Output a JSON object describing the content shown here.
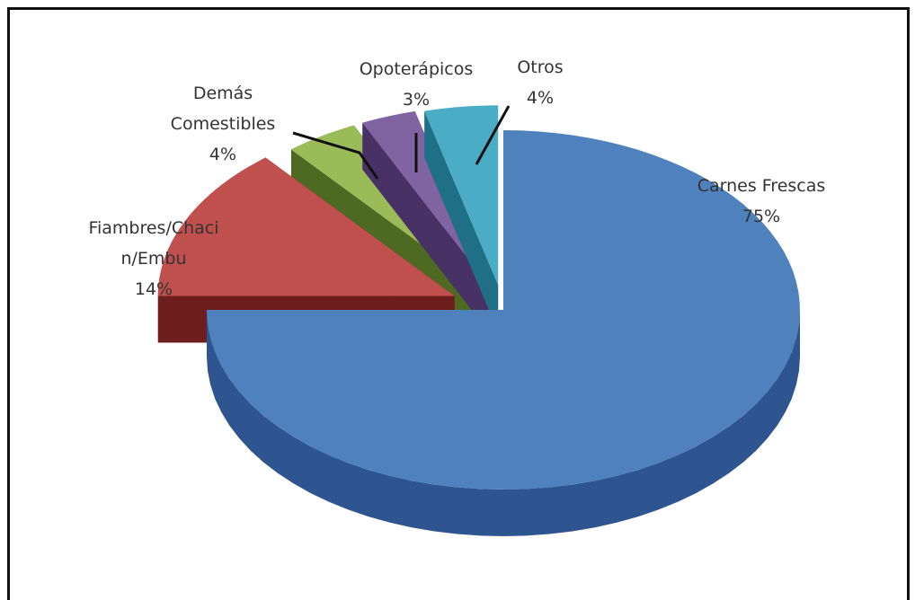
{
  "chart_data": {
    "type": "pie",
    "style": "3d-exploded",
    "slices": [
      {
        "label": "Carnes Frescas",
        "value": 75,
        "value_label": "75%",
        "color": "#4F81BD",
        "side_color": "#2E5590",
        "label_lines": [
          "Carnes Frescas",
          "75%"
        ]
      },
      {
        "label": "Fiambres/Chacin/Embu",
        "value": 14,
        "value_label": "14%",
        "color": "#C0504D",
        "side_color": "#6E1F1D",
        "label_lines": [
          "Fiambres/Chaci",
          "n/Embu",
          "14%"
        ]
      },
      {
        "label": "Demás Comestibles",
        "value": 4,
        "value_label": "4%",
        "color": "#9BBB59",
        "side_color": "#4E6A22",
        "label_lines": [
          "Demás",
          "Comestibles",
          "4%"
        ]
      },
      {
        "label": "Opoterápicos",
        "value": 3,
        "value_label": "3%",
        "color": "#8064A2",
        "side_color": "#473165",
        "label_lines": [
          "Opoterápicos",
          "3%"
        ]
      },
      {
        "label": "Otros",
        "value": 4,
        "value_label": "4%",
        "color": "#4BACC6",
        "side_color": "#1F6F86",
        "label_lines": [
          "Otros",
          "4%"
        ]
      }
    ]
  }
}
